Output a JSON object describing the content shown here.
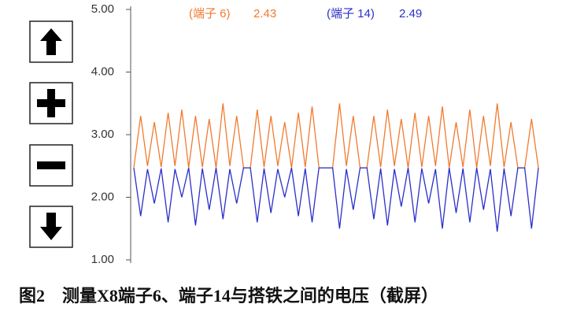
{
  "chart_data": {
    "type": "line",
    "caption": "图2　测量X8端子6、端子14与搭铁之间的电压（截屏）",
    "ylim": [
      1,
      5
    ],
    "yticks": [
      {
        "value": 1,
        "label": "1.00"
      },
      {
        "value": 2,
        "label": "2.00"
      },
      {
        "value": 3,
        "label": "3.00"
      },
      {
        "value": 4,
        "label": "4.00"
      },
      {
        "value": 5,
        "label": "5.00"
      }
    ],
    "series": [
      {
        "name": "(端子 6)",
        "readout": "2.43",
        "color": "#f07b2f",
        "values": [
          2.47,
          3.3,
          2.5,
          3.2,
          2.48,
          3.35,
          2.5,
          3.4,
          2.47,
          3.3,
          2.48,
          3.25,
          2.47,
          3.5,
          2.5,
          3.3,
          2.47,
          2.47,
          3.4,
          2.48,
          3.3,
          2.5,
          3.2,
          2.47,
          3.35,
          2.48,
          3.45,
          2.47,
          2.47,
          2.47,
          3.5,
          2.5,
          3.3,
          2.47,
          2.47,
          3.3,
          2.48,
          3.4,
          2.5,
          3.25,
          2.47,
          3.35,
          2.48,
          3.3,
          2.5,
          3.45,
          2.47,
          3.2,
          2.48,
          3.4,
          2.47,
          3.3,
          2.5,
          3.5,
          2.48,
          3.2,
          2.47,
          2.47,
          3.25,
          2.47
        ]
      },
      {
        "name": "(端子 14)",
        "readout": "2.49",
        "color": "#2a2fc8",
        "values": [
          2.47,
          1.7,
          2.45,
          1.9,
          2.46,
          1.6,
          2.45,
          2.0,
          2.47,
          1.55,
          2.46,
          1.8,
          2.47,
          1.65,
          2.45,
          1.9,
          2.47,
          2.47,
          1.6,
          2.46,
          1.75,
          2.45,
          2.0,
          2.47,
          1.7,
          2.46,
          1.6,
          2.47,
          2.47,
          2.47,
          1.5,
          2.45,
          1.8,
          2.47,
          2.47,
          1.65,
          2.46,
          1.55,
          2.45,
          1.85,
          2.47,
          1.6,
          2.46,
          1.9,
          2.45,
          1.5,
          2.47,
          1.75,
          2.46,
          1.6,
          2.47,
          1.8,
          2.45,
          1.45,
          2.46,
          1.7,
          2.47,
          2.47,
          1.5,
          2.47
        ]
      }
    ]
  }
}
